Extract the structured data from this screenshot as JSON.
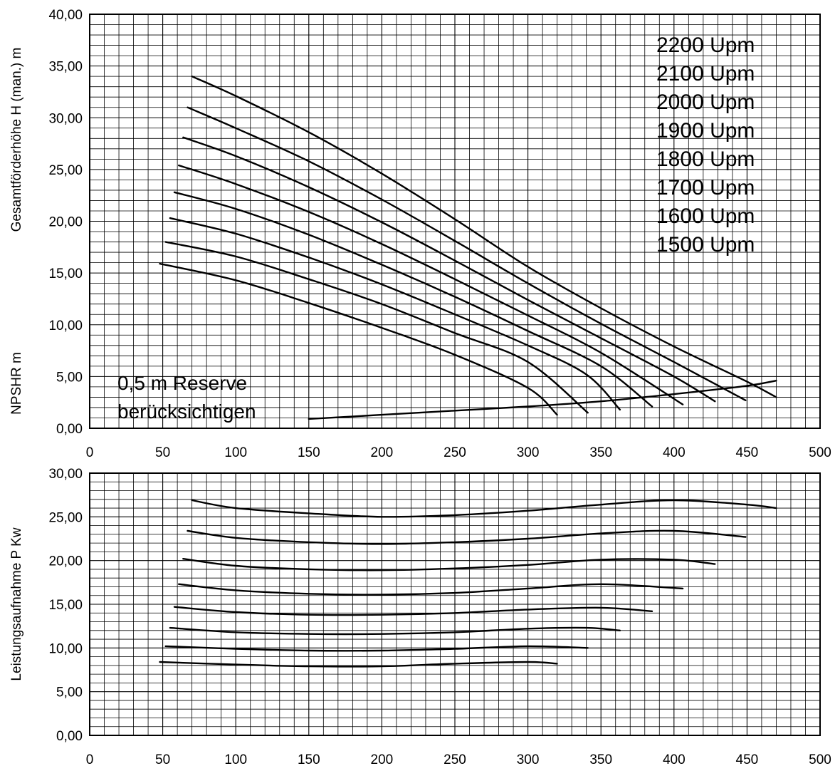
{
  "chart_data": [
    {
      "type": "line",
      "ylabel": "Gesamtförderhöhe H (man.) m",
      "ylabel2": "NPSHR m",
      "xlim": [
        0,
        500
      ],
      "ylim": [
        0,
        40
      ],
      "x_ticks": [
        "0",
        "50",
        "100",
        "150",
        "200",
        "250",
        "300",
        "350",
        "400",
        "450",
        "500"
      ],
      "y_ticks": [
        "0,00",
        "5,00",
        "10,00",
        "15,00",
        "20,00",
        "25,00",
        "30,00",
        "35,00",
        "40,00"
      ],
      "legend": [
        "2200 Upm",
        "2100 Upm",
        "2000 Upm",
        "1900 Upm",
        "1800 Upm",
        "1700 Upm",
        "1600 Upm",
        "1500 Upm"
      ],
      "annotation": [
        "0,5 m Reserve",
        "berücksichtigen"
      ],
      "series": [
        {
          "name": "2200 Upm",
          "x": [
            70,
            100,
            150,
            200,
            250,
            300,
            350,
            400,
            450,
            470
          ],
          "y": [
            34.0,
            32.1,
            28.6,
            24.6,
            20.2,
            15.6,
            11.6,
            7.9,
            4.5,
            3.0
          ]
        },
        {
          "name": "2100 Upm",
          "x": [
            67,
            100,
            150,
            200,
            250,
            300,
            350,
            400,
            449
          ],
          "y": [
            31.0,
            29.0,
            25.8,
            22.1,
            18.1,
            14.0,
            10.1,
            6.4,
            2.7
          ]
        },
        {
          "name": "2000 Upm",
          "x": [
            64,
            100,
            150,
            200,
            250,
            300,
            350,
            400,
            428
          ],
          "y": [
            28.1,
            26.3,
            23.3,
            19.9,
            16.2,
            12.4,
            8.7,
            5.0,
            2.6
          ]
        },
        {
          "name": "1900 Upm",
          "x": [
            61,
            100,
            150,
            200,
            250,
            300,
            350,
            406
          ],
          "y": [
            25.4,
            23.6,
            20.9,
            17.8,
            14.4,
            10.9,
            7.3,
            2.3
          ]
        },
        {
          "name": "1800 Upm",
          "x": [
            58,
            100,
            150,
            200,
            250,
            300,
            350,
            385
          ],
          "y": [
            22.8,
            21.2,
            18.7,
            15.8,
            12.7,
            9.4,
            6.0,
            2.1
          ]
        },
        {
          "name": "1700 Upm",
          "x": [
            55,
            100,
            150,
            200,
            250,
            300,
            340,
            363
          ],
          "y": [
            20.3,
            18.8,
            16.5,
            13.9,
            11.0,
            8.0,
            5.2,
            1.8
          ]
        },
        {
          "name": "1600 Upm",
          "x": [
            52,
            100,
            150,
            200,
            250,
            300,
            341
          ],
          "y": [
            18.0,
            16.6,
            14.4,
            12.0,
            9.2,
            6.4,
            1.5
          ]
        },
        {
          "name": "1500 Upm",
          "x": [
            48,
            100,
            150,
            200,
            250,
            300,
            320
          ],
          "y": [
            15.9,
            14.3,
            12.1,
            9.7,
            7.1,
            3.9,
            1.3
          ]
        },
        {
          "name": "NPSHR",
          "x": [
            150,
            200,
            250,
            300,
            350,
            400,
            450,
            470
          ],
          "y": [
            0.9,
            1.3,
            1.7,
            2.1,
            2.6,
            3.3,
            4.1,
            4.6
          ]
        }
      ]
    },
    {
      "type": "line",
      "ylabel": "Leistungsaufnahme P Kw",
      "xlim": [
        0,
        500
      ],
      "ylim": [
        0,
        30
      ],
      "x_ticks": [
        "0",
        "50",
        "100",
        "150",
        "200",
        "250",
        "300",
        "350",
        "400",
        "450",
        "500"
      ],
      "y_ticks": [
        "0,00",
        "5,00",
        "10,00",
        "15,00",
        "20,00",
        "25,00",
        "30,00"
      ],
      "series": [
        {
          "name": "2200 Upm",
          "x": [
            70,
            100,
            150,
            200,
            250,
            300,
            350,
            400,
            450,
            470
          ],
          "y": [
            26.9,
            26.0,
            25.4,
            25.0,
            25.2,
            25.7,
            26.4,
            26.9,
            26.4,
            26.0
          ]
        },
        {
          "name": "2100 Upm",
          "x": [
            67,
            100,
            150,
            200,
            250,
            300,
            350,
            400,
            449
          ],
          "y": [
            23.4,
            22.6,
            22.1,
            21.9,
            22.1,
            22.5,
            23.1,
            23.4,
            22.7
          ]
        },
        {
          "name": "2000 Upm",
          "x": [
            64,
            100,
            150,
            200,
            250,
            300,
            350,
            400,
            428
          ],
          "y": [
            20.2,
            19.4,
            19.0,
            18.9,
            19.1,
            19.5,
            20.1,
            20.1,
            19.6
          ]
        },
        {
          "name": "1900 Upm",
          "x": [
            61,
            100,
            150,
            200,
            250,
            300,
            350,
            406
          ],
          "y": [
            17.3,
            16.6,
            16.2,
            16.1,
            16.3,
            16.8,
            17.3,
            16.8
          ]
        },
        {
          "name": "1800 Upm",
          "x": [
            58,
            100,
            150,
            200,
            250,
            300,
            350,
            385
          ],
          "y": [
            14.7,
            14.1,
            13.8,
            13.8,
            14.0,
            14.4,
            14.6,
            14.2
          ]
        },
        {
          "name": "1700 Upm",
          "x": [
            55,
            100,
            150,
            200,
            250,
            300,
            340,
            363
          ],
          "y": [
            12.3,
            11.8,
            11.6,
            11.6,
            11.8,
            12.2,
            12.3,
            12.0
          ]
        },
        {
          "name": "1600 Upm",
          "x": [
            52,
            100,
            150,
            200,
            250,
            300,
            341
          ],
          "y": [
            10.2,
            9.9,
            9.7,
            9.7,
            9.9,
            10.2,
            10.0
          ]
        },
        {
          "name": "1500 Upm",
          "x": [
            48,
            100,
            150,
            200,
            250,
            300,
            320
          ],
          "y": [
            8.4,
            8.1,
            7.9,
            7.9,
            8.2,
            8.4,
            8.2
          ]
        }
      ]
    }
  ]
}
